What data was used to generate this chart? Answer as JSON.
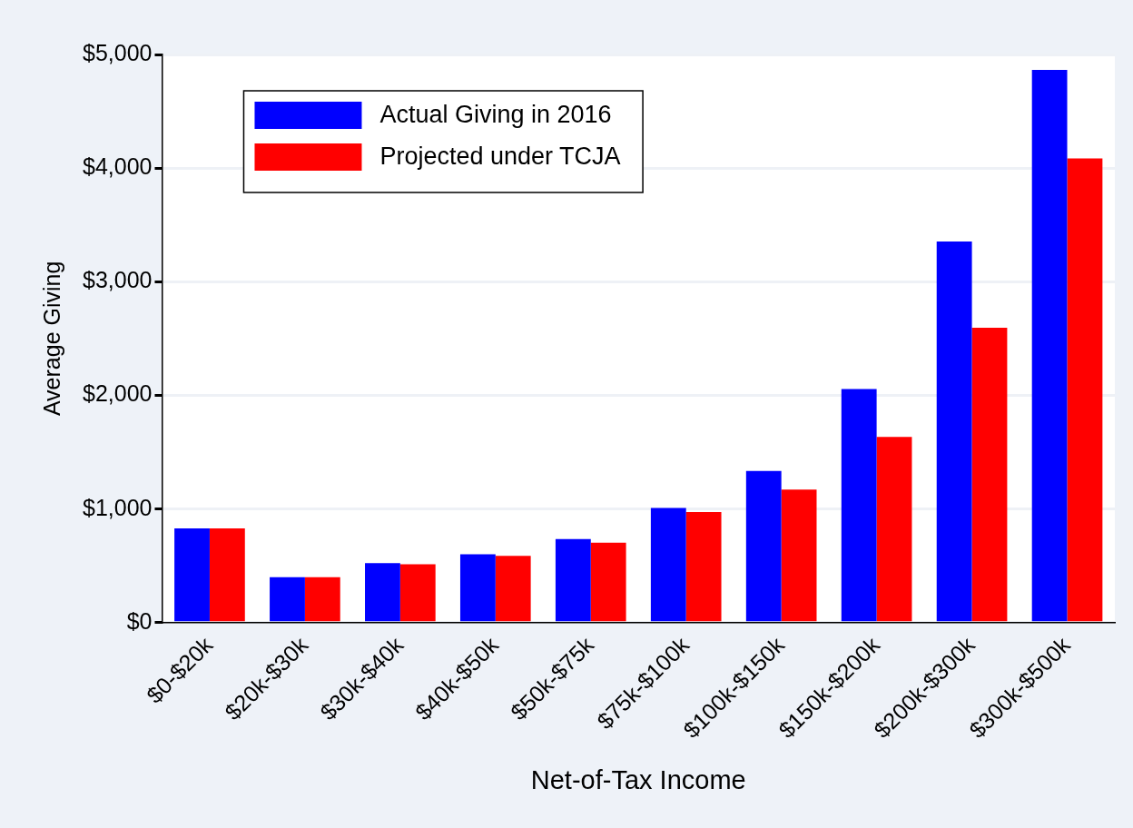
{
  "chart_data": {
    "type": "bar",
    "xlabel": "Net-of-Tax Income",
    "ylabel": "Average Giving",
    "categories": [
      "$0-$20k",
      "$20k-$30k",
      "$30k-$40k",
      "$40k-$50k",
      "$50k-$75k",
      "$75k-$100k",
      "$100k-$150k",
      "$150k-$200k",
      "$200k-$300k",
      "$300k-$500k"
    ],
    "series": [
      {
        "name": "Actual Giving in 2016",
        "color": "#0000ff",
        "values": [
          830,
          400,
          523,
          602,
          736,
          1009,
          1335,
          2055,
          3355,
          4865
        ]
      },
      {
        "name": "Projected under TCJA",
        "color": "#ff0000",
        "values": [
          830,
          400,
          514,
          588,
          704,
          972,
          1171,
          1635,
          2595,
          4085
        ]
      }
    ],
    "ylim": [
      0,
      5000
    ],
    "yticks": [
      {
        "value": 0,
        "label": "$0"
      },
      {
        "value": 1000,
        "label": "$1,000"
      },
      {
        "value": 2000,
        "label": "$2,000"
      },
      {
        "value": 3000,
        "label": "$3,000"
      },
      {
        "value": 4000,
        "label": "$4,000"
      },
      {
        "value": 5000,
        "label": "$5,000"
      }
    ],
    "grid": "y",
    "legend": "top left"
  }
}
